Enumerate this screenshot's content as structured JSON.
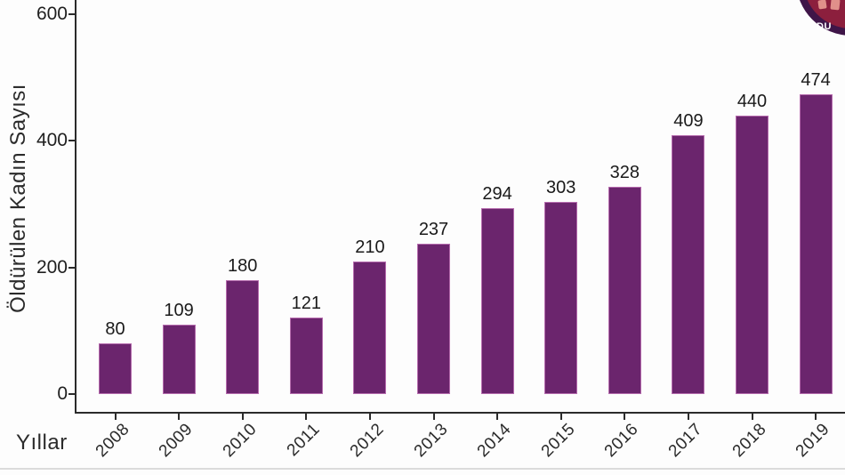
{
  "chart_data": {
    "type": "bar",
    "categories": [
      "2008",
      "2009",
      "2010",
      "2011",
      "2012",
      "2013",
      "2014",
      "2015",
      "2016",
      "2017",
      "2018",
      "2019"
    ],
    "values": [
      80,
      109,
      180,
      121,
      210,
      237,
      294,
      303,
      328,
      409,
      440,
      474
    ],
    "title": "",
    "xlabel": "Yıllar",
    "ylabel": "Öldürülen Kadın Sayısı",
    "yticks": [
      0,
      200,
      400,
      600
    ],
    "ylim": [
      0,
      628
    ],
    "grid": false,
    "legend": false,
    "bar_color": "#6B256D",
    "bar_edge_color": "#B56BAD",
    "axis_color": "#2B2B2B",
    "label_color": "#1A1A1A"
  },
  "logo": {
    "visible_text": "DU",
    "ring_color": "#3F1548",
    "inner_color": "#8C1F3D",
    "fragment_color": "#E0908A",
    "text_color": "#FFFFFF"
  },
  "page": {
    "bottom_divider_color": "#CFCFCF"
  }
}
